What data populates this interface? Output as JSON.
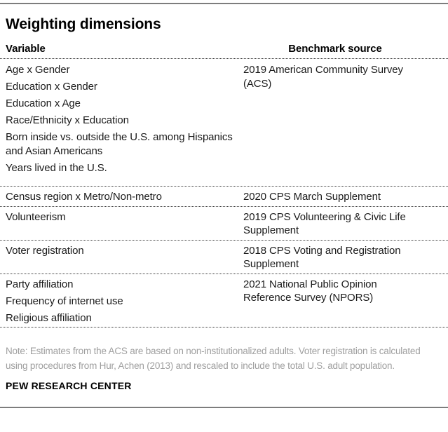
{
  "title": "Weighting dimensions",
  "colors": {
    "text": "#1a1a1a",
    "note_gray": "#9e9e9e",
    "rule_gray": "#7d7d7d",
    "dotted_line": "#3d3d3d"
  },
  "table": {
    "col_headers": [
      "Variable",
      "Benchmark source"
    ],
    "rows": [
      {
        "variables": [
          "Age x Gender",
          "Education x Gender",
          "Education x Age",
          "Race/Ethnicity x Education",
          "Born inside vs. outside the U.S. among Hispanics and Asian Americans",
          "Years lived in the U.S."
        ],
        "source": "2019 American Community Survey (ACS)"
      },
      {
        "variables": [
          "Census region x Metro/Non-metro"
        ],
        "source": "2020 CPS March Supplement"
      },
      {
        "variables": [
          "Volunteerism"
        ],
        "source": "2019 CPS Volunteering & Civic Life Supplement"
      },
      {
        "variables": [
          "Voter registration"
        ],
        "source": "2018 CPS Voting and Registration Supplement"
      },
      {
        "variables": [
          "Party affiliation",
          "Frequency of internet use",
          "Religious affiliation"
        ],
        "source": "2021 National Public Opinion Reference Survey (NPORS)"
      }
    ]
  },
  "note": "Note: Estimates from the ACS are based on non-institutionalized adults. Voter registration is calculated using procedures from Hur, Achen (2013) and rescaled to include the total U.S. adult population.",
  "attribution": "PEW RESEARCH CENTER",
  "chart_data": {
    "type": "table",
    "title": "Weighting dimensions",
    "columns": [
      "Variable",
      "Benchmark source"
    ],
    "rows": [
      {
        "variable": "Age x Gender",
        "benchmark_source": "2019 American Community Survey (ACS)"
      },
      {
        "variable": "Education x Gender",
        "benchmark_source": "2019 American Community Survey (ACS)"
      },
      {
        "variable": "Education x Age",
        "benchmark_source": "2019 American Community Survey (ACS)"
      },
      {
        "variable": "Race/Ethnicity x Education",
        "benchmark_source": "2019 American Community Survey (ACS)"
      },
      {
        "variable": "Born inside vs. outside the U.S. among Hispanics and Asian Americans",
        "benchmark_source": "2019 American Community Survey (ACS)"
      },
      {
        "variable": "Years lived in the U.S.",
        "benchmark_source": "2019 American Community Survey (ACS)"
      },
      {
        "variable": "Census region x Metro/Non-metro",
        "benchmark_source": "2020 CPS March Supplement"
      },
      {
        "variable": "Volunteerism",
        "benchmark_source": "2019 CPS Volunteering & Civic Life Supplement"
      },
      {
        "variable": "Voter registration",
        "benchmark_source": "2018 CPS Voting and Registration Supplement"
      },
      {
        "variable": "Party affiliation",
        "benchmark_source": "2021 National Public Opinion Reference Survey (NPORS)"
      },
      {
        "variable": "Frequency of internet use",
        "benchmark_source": "2021 National Public Opinion Reference Survey (NPORS)"
      },
      {
        "variable": "Religious affiliation",
        "benchmark_source": "2021 National Public Opinion Reference Survey (NPORS)"
      }
    ],
    "layout": {
      "grid": "dotted horizontal separators",
      "legend": "none"
    }
  }
}
